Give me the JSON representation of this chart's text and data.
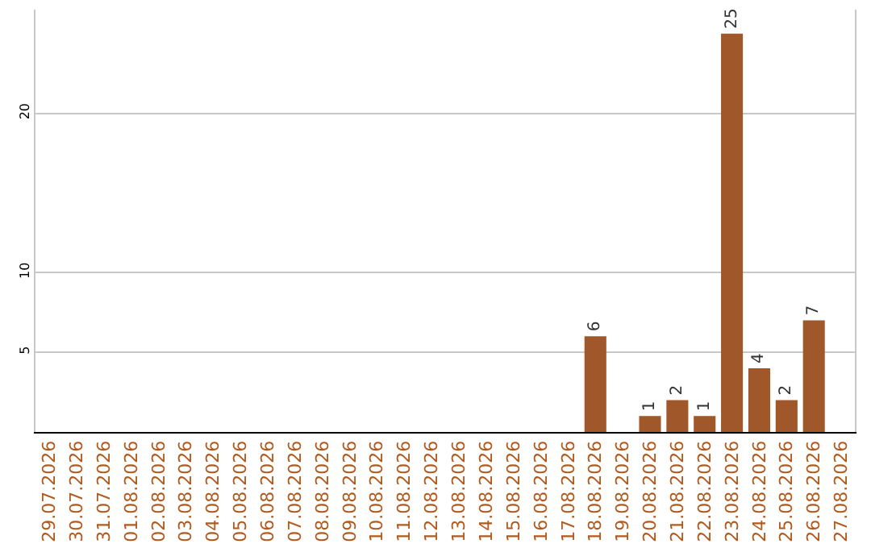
{
  "chart_data": {
    "type": "bar",
    "categories": [
      "29.07.2026",
      "30.07.2026",
      "31.07.2026",
      "01.08.2026",
      "02.08.2026",
      "03.08.2026",
      "04.08.2026",
      "05.08.2026",
      "06.08.2026",
      "07.08.2026",
      "08.08.2026",
      "09.08.2026",
      "10.08.2026",
      "11.08.2026",
      "12.08.2026",
      "13.08.2026",
      "14.08.2026",
      "15.08.2026",
      "16.08.2026",
      "17.08.2026",
      "18.08.2026",
      "19.08.2026",
      "20.08.2026",
      "21.08.2026",
      "22.08.2026",
      "23.08.2026",
      "24.08.2026",
      "25.08.2026",
      "26.08.2026",
      "27.08.2026"
    ],
    "values": [
      0,
      0,
      0,
      0,
      0,
      0,
      0,
      0,
      0,
      0,
      0,
      0,
      0,
      0,
      0,
      0,
      0,
      0,
      0,
      0,
      6,
      0,
      1,
      2,
      1,
      25,
      4,
      2,
      7,
      0
    ],
    "value_labels": [
      null,
      null,
      null,
      null,
      null,
      null,
      null,
      null,
      null,
      null,
      null,
      null,
      null,
      null,
      null,
      null,
      null,
      null,
      null,
      null,
      "6",
      null,
      "1",
      "2",
      "1",
      "25",
      "4",
      "2",
      "7",
      null
    ],
    "color": "#a0582a",
    "ylim": [
      0,
      26.5
    ],
    "yticks": [
      5,
      10,
      20
    ],
    "grid": "y"
  }
}
